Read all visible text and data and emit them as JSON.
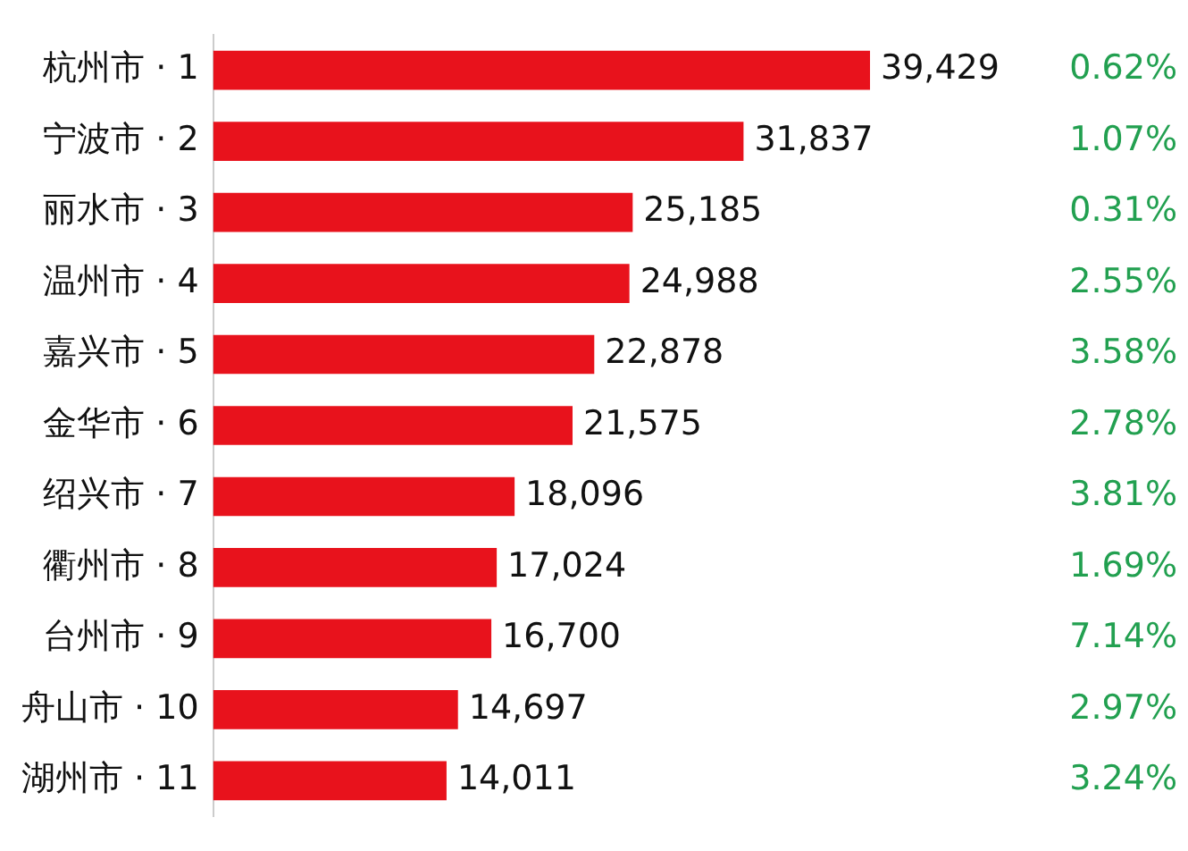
{
  "chart_data": {
    "type": "bar",
    "orientation": "horizontal",
    "categories": [
      "杭州市 · 1",
      "宁波市 · 2",
      "丽水市 · 3",
      "温州市 · 4",
      "嘉兴市 · 5",
      "金华市 · 6",
      "绍兴市 · 7",
      "衢州市 · 8",
      "台州市 · 9",
      "舟山市 · 10",
      "湖州市 · 11"
    ],
    "values": [
      39429,
      31837,
      25185,
      24988,
      22878,
      21575,
      18096,
      17024,
      16700,
      14697,
      14011
    ],
    "value_labels": [
      "39,429",
      "31,837",
      "25,185",
      "24,988",
      "22,878",
      "21,575",
      "18,096",
      "17,024",
      "16,700",
      "14,697",
      "14,011"
    ],
    "color": "#e8121c",
    "grid": false,
    "tick_labels": "y",
    "annotations": [
      "0.62%",
      "1.07%",
      "0.31%",
      "2.55%",
      "3.58%",
      "2.78%",
      "3.81%",
      "1.69%",
      "7.14%",
      "2.97%",
      "3.24%"
    ]
  }
}
